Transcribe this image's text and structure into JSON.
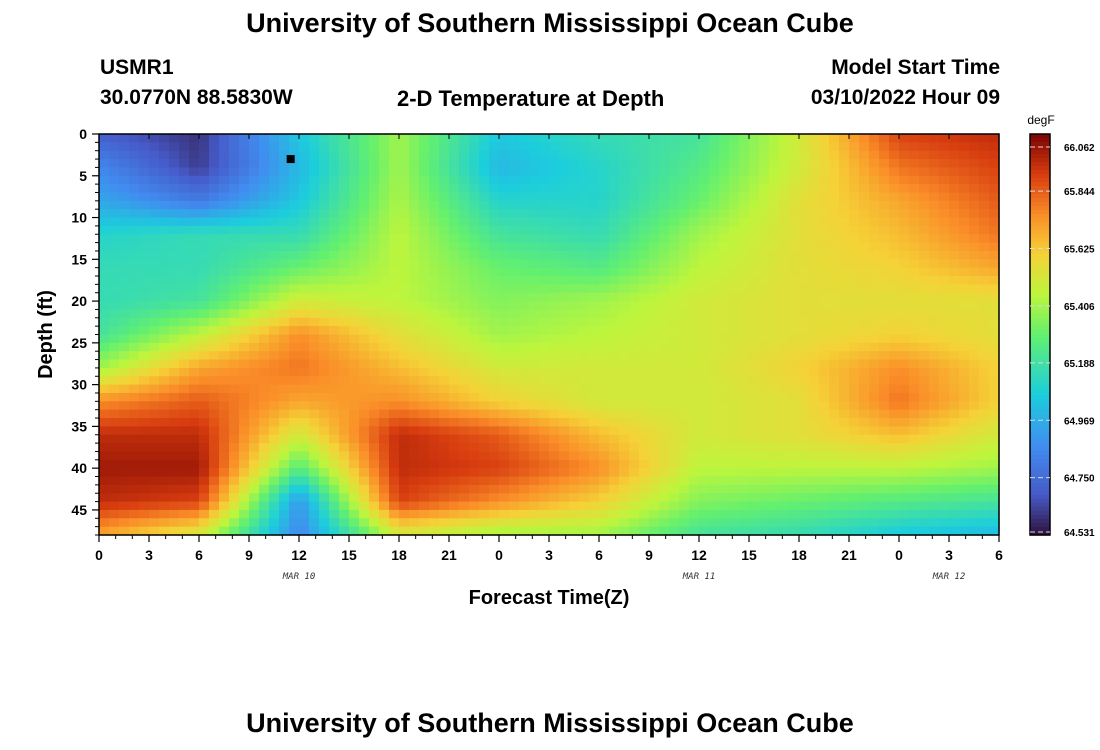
{
  "header": {
    "title": "University of Southern Mississippi Ocean Cube",
    "station": "USMR1",
    "coords": "30.0770N  88.5830W",
    "subtitle": "2-D Temperature at Depth",
    "model_label": "Model Start Time",
    "model_time": "03/10/2022 Hour 09"
  },
  "footer": {
    "title": "University of Southern Mississippi Ocean Cube"
  },
  "chart_data": {
    "type": "heatmap",
    "title": "2-D Temperature at Depth",
    "xlabel": "Forecast Time(Z)",
    "ylabel": "Depth (ft)",
    "x_tick_labels": [
      "0",
      "3",
      "6",
      "9",
      "12",
      "15",
      "18",
      "21",
      "0",
      "3",
      "6",
      "9",
      "12",
      "15",
      "18",
      "21",
      "0",
      "3",
      "6"
    ],
    "date_labels": [
      {
        "label": "MAR 10",
        "tick_index": 4
      },
      {
        "label": "MAR 11",
        "tick_index": 12
      },
      {
        "label": "MAR 12",
        "tick_index": 17
      }
    ],
    "y_ticks": [
      0,
      5,
      10,
      15,
      20,
      25,
      30,
      35,
      40,
      45
    ],
    "ylim": [
      0,
      48
    ],
    "xlim_hours": [
      0,
      54
    ],
    "colorbar": {
      "units": "degF",
      "tick_labels": [
        "66.062",
        "65.844",
        "65.625",
        "65.406",
        "65.188",
        "64.969",
        "64.750",
        "64.531"
      ],
      "range": [
        64.531,
        66.062
      ]
    },
    "marker": {
      "hour": 11.5,
      "depth": 3
    },
    "grid_hours": [
      0,
      6,
      12,
      18,
      24,
      30,
      36,
      42,
      48,
      54
    ],
    "grid_depths": [
      0,
      4,
      8,
      12,
      16,
      20,
      24,
      28,
      32,
      36,
      40,
      44,
      48
    ],
    "values": [
      [
        64.7,
        64.6,
        65.05,
        65.4,
        65.05,
        65.15,
        65.2,
        65.5,
        65.9,
        65.95
      ],
      [
        64.85,
        64.62,
        65.0,
        65.4,
        65.0,
        65.1,
        65.25,
        65.5,
        65.8,
        65.9
      ],
      [
        64.95,
        64.8,
        65.05,
        65.42,
        65.1,
        65.1,
        65.3,
        65.55,
        65.7,
        65.85
      ],
      [
        65.1,
        65.15,
        65.15,
        65.45,
        65.2,
        65.15,
        65.4,
        65.55,
        65.65,
        65.8
      ],
      [
        65.15,
        65.15,
        65.3,
        65.45,
        65.3,
        65.25,
        65.45,
        65.55,
        65.6,
        65.7
      ],
      [
        65.15,
        65.2,
        65.5,
        65.45,
        65.35,
        65.4,
        65.5,
        65.55,
        65.55,
        65.55
      ],
      [
        65.2,
        65.45,
        65.75,
        65.55,
        65.4,
        65.45,
        65.5,
        65.55,
        65.6,
        65.55
      ],
      [
        65.4,
        65.7,
        65.8,
        65.65,
        65.5,
        65.5,
        65.5,
        65.6,
        65.75,
        65.6
      ],
      [
        65.75,
        65.85,
        65.7,
        65.75,
        65.6,
        65.5,
        65.5,
        65.55,
        65.8,
        65.6
      ],
      [
        65.95,
        65.95,
        65.5,
        65.95,
        65.85,
        65.65,
        65.5,
        65.55,
        65.65,
        65.5
      ],
      [
        66.0,
        66.0,
        65.25,
        65.95,
        65.9,
        65.75,
        65.45,
        65.45,
        65.45,
        65.4
      ],
      [
        65.95,
        65.9,
        64.9,
        65.9,
        65.75,
        65.6,
        65.35,
        65.3,
        65.25,
        65.2
      ],
      [
        65.7,
        65.5,
        64.85,
        65.5,
        65.4,
        65.4,
        65.2,
        65.15,
        65.05,
        65.0
      ]
    ]
  }
}
